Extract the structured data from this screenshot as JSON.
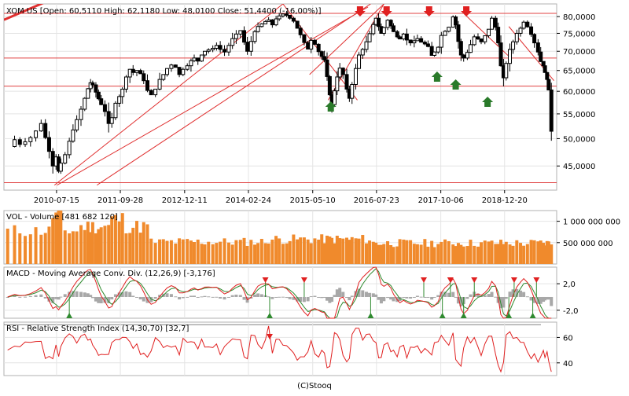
{
  "footer": "(C)Stooq",
  "chart_data": [
    {
      "type": "candlestick",
      "legend": "XOM US [Open: 60,5110  High: 62,1180  Low: 48,0100  Close: 51,4400  (-16,00%)]",
      "ticker": "XOM US",
      "open": 60.511,
      "high": 62.118,
      "low": 48.01,
      "close": 51.44,
      "change_pct": -16.0,
      "log_scale": true,
      "ylim": [
        41000,
        84000
      ],
      "y_ticks": [
        45000,
        50000,
        55000,
        60000,
        65000,
        70000,
        75000,
        80000
      ],
      "y_tick_labels": [
        "45,0000",
        "50,0000",
        "55,0000",
        "60,0000",
        "65,0000",
        "70,0000",
        "75,0000",
        "80,0000"
      ],
      "x_tick_labels": [
        "2010-07-15",
        "2011-09-28",
        "2012-12-11",
        "2014-02-24",
        "2015-05-10",
        "2016-07-23",
        "2017-10-06",
        "2018-12-20"
      ],
      "x_range": [
        "2009-08",
        "2019-10"
      ],
      "close_series": [
        [
          2009.62,
          48.5
        ],
        [
          2009.75,
          49.8
        ],
        [
          2009.85,
          48.9
        ],
        [
          2009.95,
          49.4
        ],
        [
          2010.05,
          50.2
        ],
        [
          2010.15,
          51.5
        ],
        [
          2010.25,
          53.0
        ],
        [
          2010.33,
          50.2
        ],
        [
          2010.4,
          47.6
        ],
        [
          2010.47,
          45.0
        ],
        [
          2010.53,
          46.6
        ],
        [
          2010.58,
          44.1
        ],
        [
          2010.62,
          45.5
        ],
        [
          2010.7,
          47.0
        ],
        [
          2010.78,
          49.5
        ],
        [
          2010.85,
          51.7
        ],
        [
          2010.92,
          53.8
        ],
        [
          2011.0,
          56.0
        ],
        [
          2011.07,
          58.4
        ],
        [
          2011.13,
          60.6
        ],
        [
          2011.18,
          62.0
        ],
        [
          2011.22,
          61.5
        ],
        [
          2011.28,
          59.8
        ],
        [
          2011.33,
          58.3
        ],
        [
          2011.38,
          57.0
        ],
        [
          2011.45,
          55.5
        ],
        [
          2011.52,
          53.0
        ],
        [
          2011.58,
          54.2
        ],
        [
          2011.65,
          57.3
        ],
        [
          2011.72,
          58.8
        ],
        [
          2011.78,
          60.5
        ],
        [
          2011.85,
          63.4
        ],
        [
          2011.92,
          65.3
        ],
        [
          2011.98,
          64.5
        ],
        [
          2012.05,
          65.0
        ],
        [
          2012.12,
          64.2
        ],
        [
          2012.18,
          62.5
        ],
        [
          2012.25,
          60.2
        ],
        [
          2012.32,
          59.2
        ],
        [
          2012.4,
          60.5
        ],
        [
          2012.48,
          62.8
        ],
        [
          2012.55,
          64.0
        ],
        [
          2012.62,
          65.5
        ],
        [
          2012.7,
          66.4
        ],
        [
          2012.78,
          65.8
        ],
        [
          2012.85,
          64.0
        ],
        [
          2012.92,
          65.3
        ],
        [
          2013.0,
          66.2
        ],
        [
          2013.07,
          67.5
        ],
        [
          2013.13,
          68.2
        ],
        [
          2013.2,
          67.4
        ],
        [
          2013.27,
          69.0
        ],
        [
          2013.33,
          70.0
        ],
        [
          2013.4,
          70.4
        ],
        [
          2013.48,
          70.8
        ],
        [
          2013.55,
          71.6
        ],
        [
          2013.62,
          70.5
        ],
        [
          2013.7,
          69.8
        ],
        [
          2013.78,
          71.6
        ],
        [
          2013.85,
          73.5
        ],
        [
          2013.92,
          74.8
        ],
        [
          2014.0,
          75.8
        ],
        [
          2014.07,
          72.5
        ],
        [
          2014.13,
          70.0
        ],
        [
          2014.2,
          72.7
        ],
        [
          2014.27,
          75.5
        ],
        [
          2014.33,
          77.0
        ],
        [
          2014.4,
          77.8
        ],
        [
          2014.47,
          78.5
        ],
        [
          2014.53,
          79.0
        ],
        [
          2014.6,
          77.5
        ],
        [
          2014.67,
          79.3
        ],
        [
          2014.73,
          80.2
        ],
        [
          2014.8,
          80.8
        ],
        [
          2014.87,
          80.4
        ],
        [
          2014.93,
          79.5
        ],
        [
          2015.0,
          78.6
        ],
        [
          2015.07,
          76.5
        ],
        [
          2015.13,
          74.6
        ],
        [
          2015.2,
          72.4
        ],
        [
          2015.27,
          70.6
        ],
        [
          2015.33,
          73.0
        ],
        [
          2015.4,
          71.9
        ],
        [
          2015.47,
          69.9
        ],
        [
          2015.53,
          68.6
        ],
        [
          2015.58,
          67.7
        ],
        [
          2015.63,
          63.5
        ],
        [
          2015.68,
          59.2
        ],
        [
          2015.72,
          57.0
        ],
        [
          2015.77,
          60.1
        ],
        [
          2015.82,
          63.4
        ],
        [
          2015.87,
          65.6
        ],
        [
          2015.93,
          64.0
        ],
        [
          2016.0,
          60.5
        ],
        [
          2016.05,
          58.4
        ],
        [
          2016.1,
          61.6
        ],
        [
          2016.17,
          65.5
        ],
        [
          2016.23,
          69.0
        ],
        [
          2016.3,
          70.5
        ],
        [
          2016.37,
          72.6
        ],
        [
          2016.43,
          74.9
        ],
        [
          2016.5,
          77.6
        ],
        [
          2016.55,
          79.5
        ],
        [
          2016.6,
          77.0
        ],
        [
          2016.65,
          75.0
        ],
        [
          2016.7,
          76.7
        ],
        [
          2016.77,
          78.9
        ],
        [
          2016.83,
          77.2
        ],
        [
          2016.88,
          75.5
        ],
        [
          2016.95,
          74.0
        ],
        [
          2017.0,
          73.4
        ],
        [
          2017.07,
          74.8
        ],
        [
          2017.13,
          73.1
        ],
        [
          2017.2,
          72.3
        ],
        [
          2017.27,
          72.9
        ],
        [
          2017.33,
          73.5
        ],
        [
          2017.4,
          72.5
        ],
        [
          2017.47,
          72.0
        ],
        [
          2017.53,
          71.3
        ],
        [
          2017.6,
          68.9
        ],
        [
          2017.65,
          69.8
        ],
        [
          2017.72,
          71.1
        ],
        [
          2017.78,
          74.4
        ],
        [
          2017.85,
          75.6
        ],
        [
          2017.92,
          76.8
        ],
        [
          2018.0,
          79.9
        ],
        [
          2018.05,
          77.5
        ],
        [
          2018.1,
          72.7
        ],
        [
          2018.15,
          69.0
        ],
        [
          2018.2,
          68.2
        ],
        [
          2018.27,
          69.7
        ],
        [
          2018.33,
          71.8
        ],
        [
          2018.4,
          74.0
        ],
        [
          2018.47,
          73.4
        ],
        [
          2018.53,
          72.6
        ],
        [
          2018.6,
          74.3
        ],
        [
          2018.67,
          76.2
        ],
        [
          2018.73,
          79.5
        ],
        [
          2018.8,
          76.8
        ],
        [
          2018.85,
          72.3
        ],
        [
          2018.9,
          66.2
        ],
        [
          2018.95,
          63.2
        ],
        [
          2019.0,
          66.8
        ],
        [
          2019.07,
          70.5
        ],
        [
          2019.13,
          72.6
        ],
        [
          2019.2,
          75.0
        ],
        [
          2019.27,
          76.5
        ],
        [
          2019.33,
          78.3
        ],
        [
          2019.4,
          76.9
        ],
        [
          2019.47,
          74.7
        ],
        [
          2019.53,
          72.3
        ],
        [
          2019.6,
          69.8
        ],
        [
          2019.65,
          67.3
        ],
        [
          2019.7,
          66.2
        ],
        [
          2019.73,
          64.5
        ],
        [
          2019.77,
          62.8
        ],
        [
          2019.8,
          60.3
        ],
        [
          2019.85,
          51.44
        ]
      ],
      "markers_down_years": [
        2016.25,
        2016.75,
        2017.55,
        2018.25
      ],
      "markers_up_years": [
        2015.7,
        2017.7,
        2018.05,
        2018.65
      ],
      "h_lines": [
        61200,
        42200,
        68200,
        81000
      ],
      "trend_lines": [
        {
          "from": [
            2009.55,
            79000
          ],
          "to": [
            2015.2,
            130000
          ]
        },
        {
          "from": [
            2010.55,
            41800
          ],
          "to": [
            2016.4,
            83000
          ]
        },
        {
          "from": [
            2010.5,
            41800
          ],
          "to": [
            2014.8,
            84000
          ]
        },
        {
          "from": [
            2011.3,
            41800
          ],
          "to": [
            2016.45,
            84000
          ]
        },
        {
          "from": [
            2014.8,
            84000
          ],
          "to": [
            2016.2,
            58000
          ]
        },
        {
          "from": [
            2015.65,
            58000
          ],
          "to": [
            2016.7,
            84000
          ]
        },
        {
          "from": [
            2015.3,
            64000
          ],
          "to": [
            2016.7,
            84000
          ]
        },
        {
          "from": [
            2018.2,
            81000
          ],
          "to": [
            2019.1,
            68000
          ]
        },
        {
          "from": [
            2019.05,
            77000
          ],
          "to": [
            2019.9,
            62500
          ]
        }
      ]
    },
    {
      "type": "bar",
      "legend": "VOL - Volume [481 682 120]",
      "latest": 481682120,
      "ylim": [
        0,
        1250000000
      ],
      "y_ticks": [
        500000000,
        1000000000
      ],
      "y_tick_labels": [
        "500 000 000",
        "1 000 000 000"
      ]
    },
    {
      "type": "line",
      "legend": "MACD - Moving Average Conv. Div. (12,26,9) [-3,176]",
      "latest": -3.176,
      "ylim": [
        -3.2,
        4.5
      ],
      "y_ticks": [
        -2.0,
        2.0
      ],
      "y_tick_labels": [
        "-2,0",
        "2,0"
      ],
      "markers_down_years": [
        2014.47,
        2015.2,
        2017.45,
        2017.95,
        2018.4,
        2019.15,
        2019.57
      ],
      "markers_up_years": [
        2010.78,
        2014.55,
        2016.45,
        2017.8,
        2018.2,
        2019.05,
        2019.5
      ]
    },
    {
      "type": "line",
      "legend": "RSI - Relative Strength Index (14,30,70) [32,7]",
      "latest": 32.7,
      "ylim": [
        30,
        72
      ],
      "y_ticks": [
        40,
        60
      ],
      "y_tick_labels": [
        "40",
        "60"
      ],
      "levels": [
        30,
        70
      ],
      "markers_down_years": [
        2014.55
      ]
    }
  ]
}
